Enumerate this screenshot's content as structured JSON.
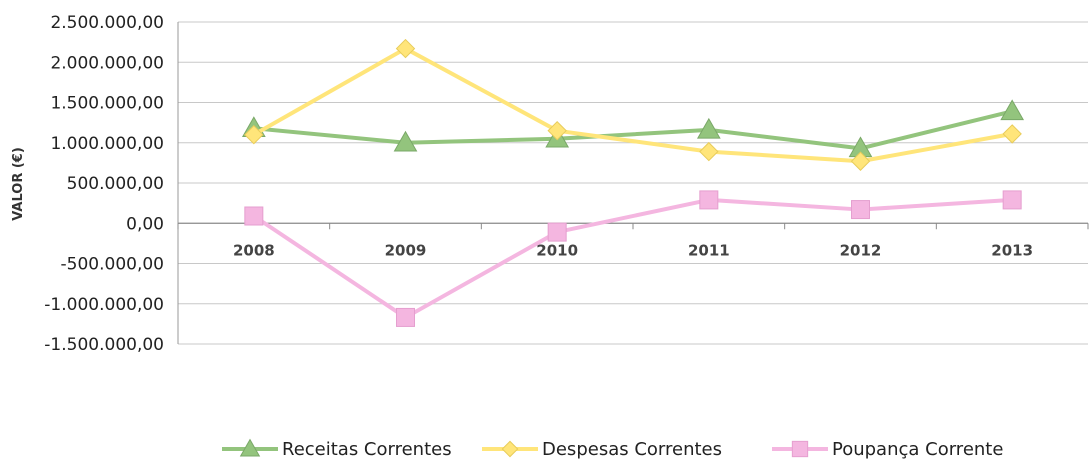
{
  "chart_data": {
    "type": "line",
    "ylabel": "VALOR (€)",
    "xlabel": "",
    "categories": [
      "2008",
      "2009",
      "2010",
      "2011",
      "2012",
      "2013"
    ],
    "ylim": [
      -1500000,
      2500000
    ],
    "ytick_values": [
      2500000,
      2000000,
      1500000,
      1000000,
      500000,
      0,
      -500000,
      -1000000,
      -1500000
    ],
    "ytick_labels": [
      "2.500.000,00",
      "2.000.000,00",
      "1.500.000,00",
      "1.000.000,00",
      "500.000,00",
      "0,00",
      "-500.000,00",
      "-1.000.000,00",
      "-1.500.000,00"
    ],
    "grid": true,
    "legend_position": "bottom",
    "series": [
      {
        "name": "Receitas Correntes",
        "color": "#93c47d",
        "marker": "triangle",
        "values": [
          1180000,
          1000000,
          1050000,
          1160000,
          930000,
          1390000
        ]
      },
      {
        "name": "Despesas Correntes",
        "color": "#ffe57a",
        "marker": "diamond",
        "values": [
          1100000,
          2170000,
          1150000,
          890000,
          770000,
          1110000
        ]
      },
      {
        "name": "Poupança Corrente",
        "color": "#f4b6e0",
        "marker": "square",
        "values": [
          90000,
          -1170000,
          -110000,
          290000,
          170000,
          290000
        ]
      }
    ]
  }
}
